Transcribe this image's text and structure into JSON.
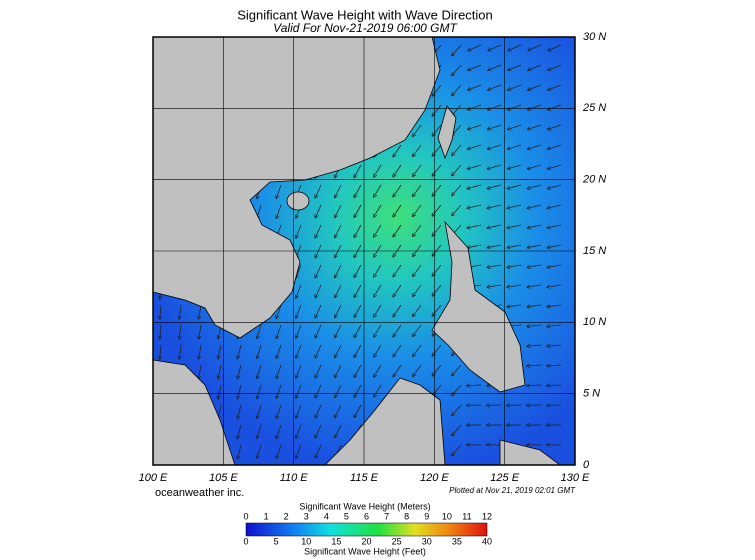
{
  "header": {
    "title": "Significant Wave Height with Wave Direction",
    "subtitle": "Valid For Nov-21-2019 06:00 GMT"
  },
  "map": {
    "longitude_labels": [
      "100 E",
      "105 E",
      "110 E",
      "115 E",
      "120 E",
      "125 E",
      "130 E"
    ],
    "latitude_labels": [
      "30 N",
      "25 N",
      "20 N",
      "15 N",
      "10 N",
      "5 N",
      "0"
    ],
    "credit": "oceanweather inc.",
    "plotted": "Plotted at Nov 21, 2019 02:01 GMT"
  },
  "colorbar": {
    "meters_title": "Significant Wave Height (Meters)",
    "meters_ticks": [
      0,
      1,
      2,
      3,
      4,
      5,
      6,
      7,
      8,
      9,
      10,
      11,
      12
    ],
    "feet_ticks": [
      0,
      5,
      10,
      15,
      20,
      25,
      30,
      35,
      40
    ],
    "feet_title": "Significant Wave Height (Feet)"
  }
}
